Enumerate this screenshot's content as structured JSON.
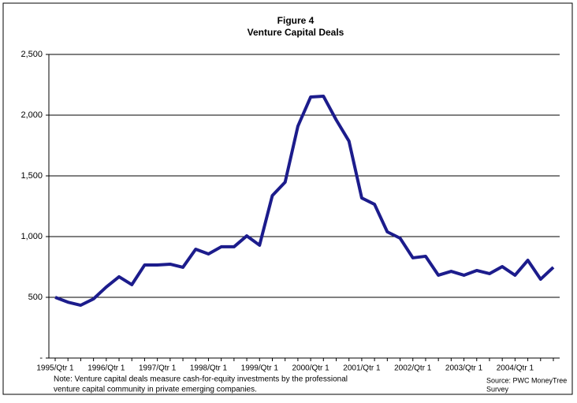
{
  "chart_data": {
    "type": "line",
    "title": "Figure 4",
    "subtitle": "Venture Capital Deals",
    "categories": [
      "1995/Qtr 1",
      null,
      null,
      null,
      "1996/Qtr 1",
      null,
      null,
      null,
      "1997/Qtr 1",
      null,
      null,
      null,
      "1998/Qtr 1",
      null,
      null,
      null,
      "1999/Qtr 1",
      null,
      null,
      null,
      "2000/Qtr 1",
      null,
      null,
      null,
      "2001/Qtr 1",
      null,
      null,
      null,
      "2002/Qtr 1",
      null,
      null,
      null,
      "2003/Qtr 1",
      null,
      null,
      null,
      "2004/Qtr 1",
      null,
      null,
      null
    ],
    "series": [
      {
        "name": "Venture Capital Deals",
        "color": "#1c1c8c",
        "values": [
          500,
          460,
          435,
          487,
          585,
          669,
          604,
          766,
          766,
          773,
          747,
          896,
          857,
          916,
          916,
          1006,
          929,
          1338,
          1448,
          1909,
          2149,
          2156,
          1961,
          1786,
          1318,
          1266,
          1039,
          987,
          825,
          838,
          682,
          714,
          682,
          721,
          695,
          753,
          682,
          805,
          649,
          747
        ]
      }
    ],
    "ylim": [
      0,
      2500
    ],
    "yticks": [
      {
        "value": 0,
        "label": "-"
      },
      500,
      {
        "value": 1000,
        "label": "1,000"
      },
      {
        "value": 1500,
        "label": "1,500"
      },
      {
        "value": 2000,
        "label": "2,000"
      },
      {
        "value": 2500,
        "label": "2,500"
      }
    ],
    "grid": true,
    "note": [
      "Note: Venture capital deals measure cash-for-equity investments by the professional",
      "venture capital community in private emerging companies."
    ],
    "source": [
      "Source: PWC MoneyTree",
      "Survey"
    ]
  }
}
